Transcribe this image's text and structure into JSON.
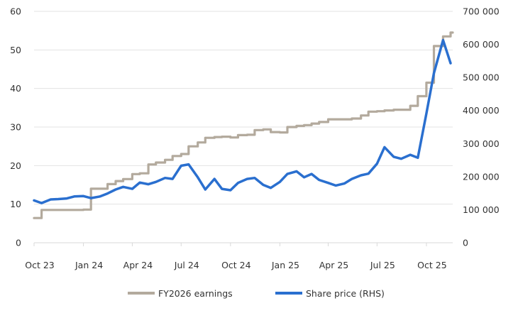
{
  "chart_data": {
    "type": "line",
    "title": "",
    "xlabel": "",
    "ylabel": "",
    "y2label": "",
    "grid": true,
    "legend_position": "bottom",
    "x_ticks": [
      {
        "date": "2023-10-01",
        "label": "Oct 23"
      },
      {
        "date": "2024-01-01",
        "label": "Jan 24"
      },
      {
        "date": "2024-04-01",
        "label": "Apr 24"
      },
      {
        "date": "2024-07-01",
        "label": "Jul 24"
      },
      {
        "date": "2024-10-01",
        "label": "Oct 24"
      },
      {
        "date": "2025-01-01",
        "label": "Jan 25"
      },
      {
        "date": "2025-04-01",
        "label": "Apr 25"
      },
      {
        "date": "2025-07-01",
        "label": "Jul 25"
      },
      {
        "date": "2025-10-01",
        "label": "Oct 25"
      }
    ],
    "xlim": [
      "2023-10-01",
      "2025-11-19"
    ],
    "y_left": {
      "lim": [
        0,
        60
      ],
      "ticks": [
        0,
        10,
        20,
        30,
        40,
        50,
        60
      ],
      "tick_labels": [
        "0",
        "10",
        "20",
        "30",
        "40",
        "50",
        "60"
      ]
    },
    "y_right": {
      "lim": [
        0,
        700000
      ],
      "ticks": [
        0,
        100000,
        200000,
        300000,
        400000,
        500000,
        600000,
        700000
      ],
      "tick_labels": [
        "0",
        "100 000",
        "200 000",
        "300 000",
        "400 000",
        "500 000",
        "600 000",
        "700 000"
      ]
    },
    "x": [
      "2023-10-01",
      "2023-10-15",
      "2023-11-01",
      "2023-11-15",
      "2023-12-01",
      "2023-12-15",
      "2024-01-01",
      "2024-01-15",
      "2024-02-01",
      "2024-02-15",
      "2024-03-01",
      "2024-03-15",
      "2024-04-01",
      "2024-04-15",
      "2024-05-01",
      "2024-05-15",
      "2024-06-01",
      "2024-06-15",
      "2024-07-01",
      "2024-07-15",
      "2024-08-01",
      "2024-08-15",
      "2024-09-01",
      "2024-09-15",
      "2024-10-01",
      "2024-10-15",
      "2024-11-01",
      "2024-11-15",
      "2024-12-01",
      "2024-12-15",
      "2025-01-01",
      "2025-01-15",
      "2025-02-01",
      "2025-02-15",
      "2025-03-01",
      "2025-03-15",
      "2025-04-01",
      "2025-04-15",
      "2025-05-01",
      "2025-05-15",
      "2025-06-01",
      "2025-06-15",
      "2025-07-01",
      "2025-07-15",
      "2025-08-01",
      "2025-08-15",
      "2025-09-01",
      "2025-09-15",
      "2025-10-01",
      "2025-10-15",
      "2025-11-01",
      "2025-11-15"
    ],
    "series": [
      {
        "name": "FY2026 earnings",
        "axis": "left",
        "color": "#b3aa9d",
        "step": true,
        "values": [
          6.4,
          8.5,
          8.5,
          8.5,
          8.5,
          8.5,
          8.6,
          14,
          14,
          15.2,
          16,
          16.5,
          17.8,
          18,
          20.3,
          20.8,
          21.5,
          22.5,
          23,
          25,
          26,
          27.2,
          27.4,
          27.5,
          27.3,
          27.9,
          28,
          29.2,
          29.4,
          28.7,
          28.6,
          30,
          30.3,
          30.5,
          30.9,
          31.3,
          32,
          32,
          32,
          32.2,
          33,
          34,
          34.1,
          34.3,
          34.5,
          34.5,
          35.5,
          38,
          41.5,
          51,
          53.5,
          54.5
        ]
      },
      {
        "name": "Share price (RHS)",
        "axis": "right",
        "color": "#2a6fcf",
        "step": false,
        "values": [
          128000,
          120000,
          131000,
          132000,
          134000,
          140000,
          141000,
          135000,
          140000,
          149000,
          161000,
          169000,
          163000,
          182000,
          177000,
          184000,
          196000,
          193000,
          233000,
          237000,
          198000,
          161000,
          193000,
          163000,
          159000,
          181000,
          193000,
          196000,
          175000,
          166000,
          184000,
          208000,
          216000,
          198000,
          208000,
          190000,
          181000,
          173000,
          179000,
          193000,
          204000,
          209000,
          239000,
          289000,
          260000,
          254000,
          266000,
          257000,
          391000,
          513000,
          613000,
          543000
        ]
      }
    ]
  },
  "legend": {
    "items": [
      "FY2026 earnings",
      "Share price (RHS)"
    ]
  }
}
